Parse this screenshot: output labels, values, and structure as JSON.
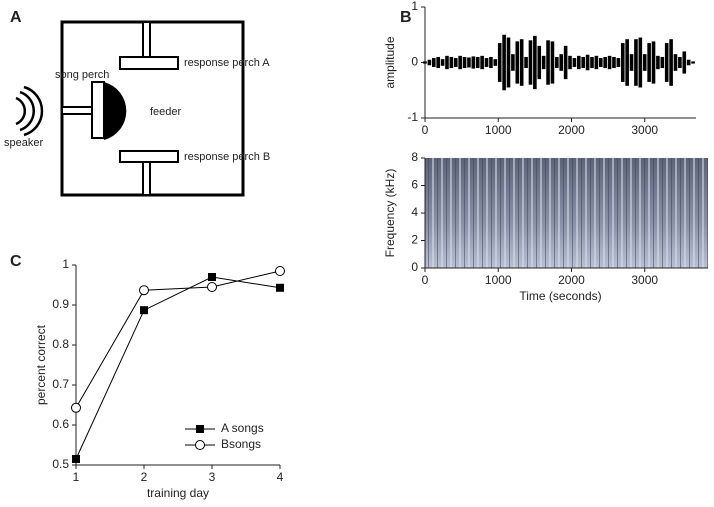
{
  "diagram": {
    "panel": "A",
    "song_perch": "song perch",
    "feeder": "feeder",
    "perch_a": "response perch A",
    "perch_b": "response perch B",
    "speaker": "speaker"
  },
  "chart_data": [
    {
      "type": "envelope",
      "panel": "B",
      "ylabel": "amplitude",
      "x": [
        0,
        60,
        120,
        180,
        240,
        300,
        360,
        420,
        480,
        540,
        600,
        660,
        720,
        780,
        840,
        900,
        960,
        1020,
        1080,
        1140,
        1200,
        1260,
        1320,
        1380,
        1440,
        1500,
        1560,
        1620,
        1680,
        1740,
        1800,
        1860,
        1920,
        1980,
        2040,
        2100,
        2160,
        2220,
        2280,
        2340,
        2400,
        2460,
        2520,
        2580,
        2640,
        2700,
        2760,
        2820,
        2880,
        2940,
        3000,
        3060,
        3120,
        3180,
        3240,
        3300,
        3360,
        3420,
        3480,
        3540,
        3600,
        3660
      ],
      "values": [
        0.02,
        0.05,
        0.08,
        0.1,
        0.06,
        0.12,
        0.1,
        0.08,
        0.12,
        0.1,
        0.09,
        0.11,
        0.1,
        0.12,
        0.08,
        0.1,
        0.06,
        0.35,
        0.5,
        0.45,
        0.15,
        0.38,
        0.42,
        0.1,
        0.4,
        0.48,
        0.3,
        0.12,
        0.4,
        0.38,
        0.1,
        0.15,
        0.3,
        0.12,
        0.08,
        0.12,
        0.1,
        0.14,
        0.1,
        0.12,
        0.08,
        0.1,
        0.12,
        0.1,
        0.08,
        0.35,
        0.42,
        0.15,
        0.42,
        0.45,
        0.15,
        0.35,
        0.38,
        0.12,
        0.1,
        0.35,
        0.42,
        0.15,
        0.1,
        0.2,
        0.05,
        0.02
      ],
      "color": "#000000",
      "xlim": [
        0,
        3700
      ],
      "xticks": [
        0,
        1000,
        2000,
        3000
      ],
      "ylim": [
        -1,
        1
      ],
      "yticks": [
        -1,
        0,
        1
      ]
    },
    {
      "type": "spectrogram",
      "xlabel": "Time (seconds)",
      "ylabel": "Frequency (kHz)",
      "xlim": [
        0,
        3700
      ],
      "xticks": [
        0,
        1000,
        2000,
        3000
      ],
      "ylim": [
        0,
        8
      ],
      "yticks": [
        0,
        2,
        4,
        6,
        8
      ]
    },
    {
      "type": "line",
      "panel": "C",
      "xlabel": "training day",
      "ylabel": "percent correct",
      "x": [
        1,
        2,
        3,
        4
      ],
      "series": [
        {
          "name": "A songs",
          "marker": "square",
          "color": "#000000",
          "values": [
            0.515,
            0.887,
            0.97,
            0.943
          ]
        },
        {
          "name": "Bsongs",
          "marker": "circle",
          "color": "#000000",
          "values": [
            0.643,
            0.937,
            0.945,
            0.985
          ]
        }
      ],
      "xlim": [
        1,
        4
      ],
      "xticks": [
        1,
        2,
        3,
        4
      ],
      "ylim": [
        0.5,
        1
      ],
      "yticks": [
        0.5,
        0.6,
        0.7,
        0.8,
        0.9,
        1
      ],
      "legend": "lower right"
    }
  ]
}
